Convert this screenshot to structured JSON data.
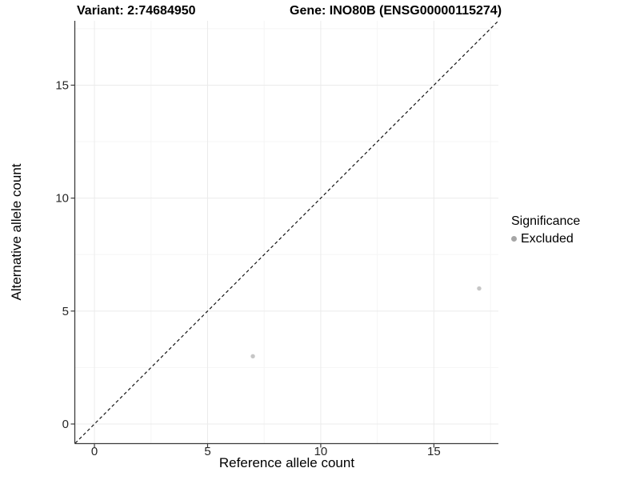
{
  "chart_data": {
    "type": "scatter",
    "title_left": "Variant: 2:74684950",
    "title_right": "Gene: INO80B (ENSG00000115274)",
    "xlabel": "Reference allele count",
    "ylabel": "Alternative allele count",
    "xlim": [
      -0.85,
      17.85
    ],
    "ylim": [
      -0.85,
      17.85
    ],
    "x_major_ticks": [
      0,
      5,
      10,
      15
    ],
    "y_major_ticks": [
      0,
      5,
      10,
      15
    ],
    "x_minor_ticks": [
      2.5,
      7.5,
      12.5,
      17.5
    ],
    "y_minor_ticks": [
      2.5,
      7.5,
      12.5,
      17.5
    ],
    "grid": "major+minor",
    "reference_line": {
      "type": "identity",
      "style": "dashed",
      "from": -0.85,
      "to": 17.85
    },
    "series": [
      {
        "name": "Excluded",
        "color": "#c6c6c6",
        "points": [
          {
            "x": 7,
            "y": 3
          },
          {
            "x": 17,
            "y": 6
          }
        ]
      }
    ],
    "legend": {
      "title": "Significance",
      "position": "right",
      "entries": [
        {
          "label": "Excluded",
          "color": "#a6a6a6"
        }
      ]
    },
    "colors": {
      "background": "#ffffff",
      "grid_major": "#ebebeb",
      "grid_minor": "#f5f5f5",
      "axis_line": "#3c3c3c",
      "tick_mark": "#3c3c3c",
      "tick_text": "#262626",
      "ref_line": "#141414"
    }
  }
}
